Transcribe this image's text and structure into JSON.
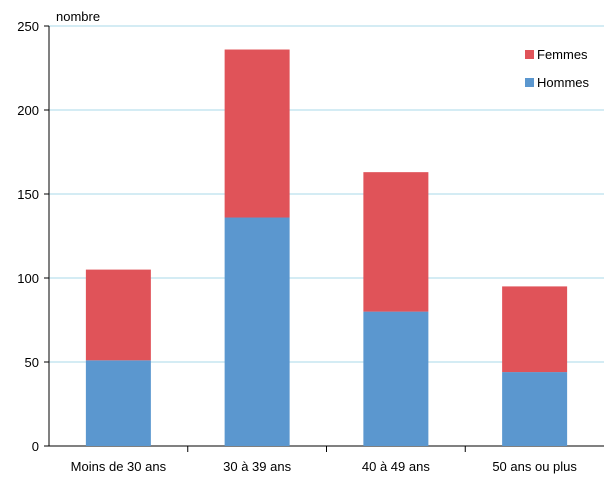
{
  "chart_data": {
    "type": "bar",
    "stacked": true,
    "ylabel": "nombre",
    "ylim": [
      0,
      250
    ],
    "yticks": [
      0,
      50,
      100,
      150,
      200,
      250
    ],
    "grid": true,
    "legend_position": "top-right",
    "categories": [
      "Moins de 30 ans",
      "30 à 39 ans",
      "40 à 49 ans",
      "50 ans ou plus"
    ],
    "series": [
      {
        "name": "Hommes",
        "color": "#5b97cf",
        "values": [
          51,
          136,
          80,
          44
        ]
      },
      {
        "name": "Femmes",
        "color": "#e05359",
        "values": [
          54,
          100,
          83,
          51
        ]
      }
    ],
    "legend_order": [
      "Femmes",
      "Hommes"
    ]
  }
}
